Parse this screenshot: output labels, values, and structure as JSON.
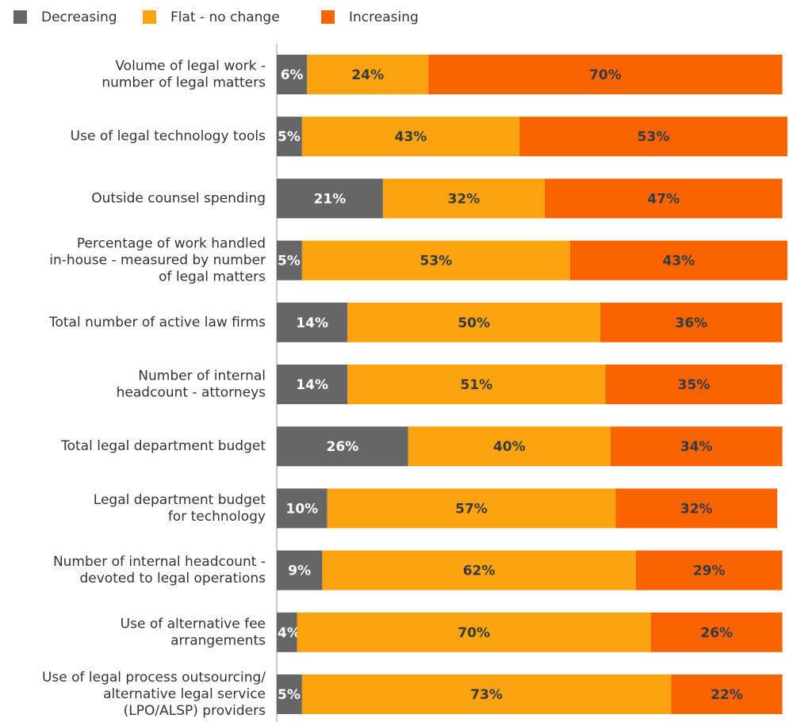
{
  "chart_data": {
    "type": "stacked-barh",
    "categories": [
      [
        "Volume of legal work -",
        "number of legal matters"
      ],
      [
        "Use of legal technology tools"
      ],
      [
        "Outside counsel spending"
      ],
      [
        "Percentage of work handled",
        "in-house - measured by number",
        "of legal matters"
      ],
      [
        "Total number of active law firms"
      ],
      [
        "Number of internal",
        "headcount - attorneys"
      ],
      [
        "Total legal department budget"
      ],
      [
        "Legal department budget",
        "for technology"
      ],
      [
        "Number of internal headcount -",
        "devoted to legal operations"
      ],
      [
        "Use of alternative fee",
        "arrangements"
      ],
      [
        "Use of legal process outsourcing/",
        "alternative legal service",
        "(LPO/ALSP) providers"
      ]
    ],
    "series": [
      {
        "name": "Decreasing",
        "color": "#666666",
        "label_color": "#ffffff",
        "values": [
          6,
          5,
          21,
          5,
          14,
          14,
          26,
          10,
          9,
          4,
          5
        ],
        "value_labels": [
          "6%",
          "5%",
          "21%",
          "5%",
          "14%",
          "14%",
          "26%",
          "10%",
          "9%",
          "4%",
          "5%"
        ]
      },
      {
        "name": "Flat - no change",
        "color": "#fca30f",
        "label_color": "#3a3a3a",
        "values": [
          24,
          43,
          32,
          53,
          50,
          51,
          40,
          57,
          62,
          70,
          73
        ],
        "value_labels": [
          "24%",
          "43%",
          "32%",
          "53%",
          "50%",
          "51%",
          "40%",
          "57%",
          "62%",
          "70%",
          "73%"
        ]
      },
      {
        "name": "Increasing",
        "color": "#fa6400",
        "label_color": "#3a3a3a",
        "values": [
          70,
          53,
          47,
          43,
          36,
          35,
          34,
          32,
          29,
          26,
          22
        ],
        "value_labels": [
          "70%",
          "53%",
          "47%",
          "43%",
          "36%",
          "35%",
          "34%",
          "32%",
          "29%",
          "26%",
          "22%"
        ]
      }
    ],
    "xlim": [
      0,
      101
    ]
  }
}
